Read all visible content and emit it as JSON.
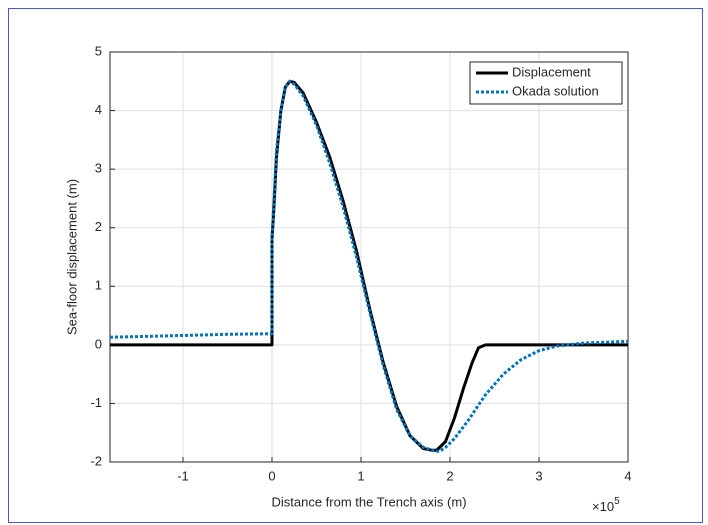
{
  "chart_data": {
    "type": "line",
    "xlabel": "Distance from the Trench axis (m)",
    "ylabel": "Sea-floor displacement (m)",
    "x_multiplier": "×10",
    "x_multiplier_exponent": "5",
    "xlim": [
      -1.82,
      4
    ],
    "xticks": [
      -1,
      0,
      1,
      2,
      3,
      4
    ],
    "ylim": [
      -2,
      5
    ],
    "yticks": [
      -2,
      -1,
      0,
      1,
      2,
      3,
      4,
      5
    ],
    "grid": true,
    "legend": "top-right",
    "series": [
      {
        "name": "Displacement",
        "color": "#000000",
        "style": "solid",
        "x": [
          -1.82,
          0,
          0,
          0.02,
          0.05,
          0.1,
          0.15,
          0.2,
          0.25,
          0.35,
          0.5,
          0.65,
          0.8,
          0.95,
          1.1,
          1.25,
          1.4,
          1.55,
          1.7,
          1.8,
          1.85,
          1.95,
          2.05,
          2.15,
          2.25,
          2.32,
          2.4,
          3,
          4
        ],
        "values": [
          0,
          0,
          1.8,
          2.3,
          3.2,
          4.0,
          4.4,
          4.5,
          4.48,
          4.3,
          3.8,
          3.2,
          2.45,
          1.6,
          0.6,
          -0.3,
          -1.05,
          -1.55,
          -1.77,
          -1.8,
          -1.8,
          -1.65,
          -1.25,
          -0.75,
          -0.3,
          -0.05,
          0,
          0,
          0
        ]
      },
      {
        "name": "Okada solution",
        "color": "#0072bd",
        "style": "dotted",
        "x": [
          -1.82,
          -1,
          -0.5,
          0,
          0,
          0.02,
          0.05,
          0.1,
          0.15,
          0.2,
          0.25,
          0.35,
          0.5,
          0.65,
          0.8,
          0.95,
          1.1,
          1.25,
          1.4,
          1.55,
          1.7,
          1.8,
          1.88,
          1.95,
          2.05,
          2.2,
          2.4,
          2.6,
          2.8,
          3.0,
          3.2,
          3.5,
          4
        ],
        "values": [
          0.13,
          0.16,
          0.18,
          0.19,
          1.8,
          2.4,
          3.3,
          4.0,
          4.4,
          4.5,
          4.45,
          4.25,
          3.75,
          3.1,
          2.35,
          1.5,
          0.55,
          -0.35,
          -1.1,
          -1.55,
          -1.75,
          -1.8,
          -1.82,
          -1.75,
          -1.6,
          -1.3,
          -0.85,
          -0.5,
          -0.25,
          -0.1,
          -0.02,
          0.03,
          0.06
        ]
      }
    ]
  }
}
